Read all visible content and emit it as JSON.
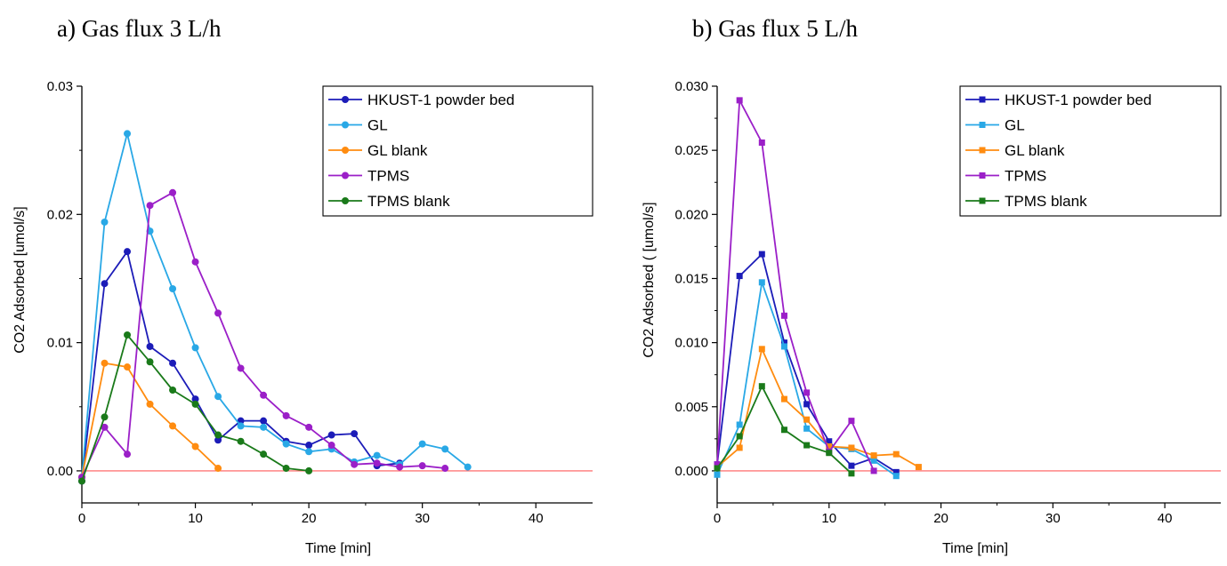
{
  "colors": {
    "hkust": "#1c1cb8",
    "gl": "#29a8e6",
    "gl_blank": "#ff8c10",
    "tpms": "#9b1fc8",
    "tpms_blank": "#1a7a1a",
    "baseline": "#ff5a5a"
  },
  "chart_data": [
    {
      "type": "line",
      "title": "a) Gas flux 3 L/h",
      "xlabel": "Time [min]",
      "ylabel": "CO2 Adsorbed [umol/s]",
      "xlim": [
        0,
        45
      ],
      "ylim": [
        -0.0025,
        0.03
      ],
      "xticks": [
        0,
        10,
        20,
        30,
        40
      ],
      "xtick_labels": [
        "0",
        "10",
        "20",
        "30",
        "40"
      ],
      "yticks": [
        0,
        0.01,
        0.02,
        0.03
      ],
      "ytick_labels": [
        "0.00",
        "0.01",
        "0.02",
        "0.03"
      ],
      "marker": "circle",
      "baseline_y": 0,
      "legend_position": "top-right",
      "series": [
        {
          "name": "HKUST-1 powder bed",
          "color_key": "hkust",
          "x": [
            0,
            2,
            4,
            6,
            8,
            10,
            12,
            14,
            16,
            18,
            20,
            22,
            24,
            26,
            28
          ],
          "y": [
            -0.0008,
            0.0146,
            0.0171,
            0.0097,
            0.0084,
            0.0056,
            0.0024,
            0.0039,
            0.0039,
            0.0023,
            0.002,
            0.0028,
            0.0029,
            0.0004,
            0.0006
          ]
        },
        {
          "name": "GL",
          "color_key": "gl",
          "x": [
            0,
            2,
            4,
            6,
            8,
            10,
            12,
            14,
            16,
            18,
            20,
            22,
            24,
            26,
            28,
            30,
            32,
            34
          ],
          "y": [
            -0.0005,
            0.0194,
            0.0263,
            0.0187,
            0.0142,
            0.0096,
            0.0058,
            0.0035,
            0.0034,
            0.0021,
            0.0015,
            0.0017,
            0.0007,
            0.0012,
            0.0005,
            0.0021,
            0.0017,
            0.0003
          ]
        },
        {
          "name": "GL blank",
          "color_key": "gl_blank",
          "x": [
            0,
            2,
            4,
            6,
            8,
            10,
            12
          ],
          "y": [
            -0.0005,
            0.0084,
            0.0081,
            0.0052,
            0.0035,
            0.0019,
            0.0002
          ]
        },
        {
          "name": "TPMS",
          "color_key": "tpms",
          "x": [
            0,
            2,
            4,
            6,
            8,
            10,
            12,
            14,
            16,
            18,
            20,
            22,
            24,
            26,
            28,
            30,
            32
          ],
          "y": [
            -0.0005,
            0.0034,
            0.0013,
            0.0207,
            0.0217,
            0.0163,
            0.0123,
            0.008,
            0.0059,
            0.0043,
            0.0034,
            0.002,
            0.0005,
            0.0006,
            0.0003,
            0.0004,
            0.0002
          ]
        },
        {
          "name": "TPMS blank",
          "color_key": "tpms_blank",
          "x": [
            0,
            2,
            4,
            6,
            8,
            10,
            12,
            14,
            16,
            18,
            20
          ],
          "y": [
            -0.0008,
            0.0042,
            0.0106,
            0.0085,
            0.0063,
            0.0052,
            0.0028,
            0.0023,
            0.0013,
            0.0002,
            0.0
          ]
        }
      ]
    },
    {
      "type": "line",
      "title": "b) Gas flux 5 L/h",
      "xlabel": "Time [min]",
      "ylabel": "CO2 Adsorbed ( [umol/s]",
      "xlim": [
        0,
        45
      ],
      "ylim": [
        -0.0025,
        0.03
      ],
      "xticks": [
        0,
        10,
        20,
        30,
        40
      ],
      "xtick_labels": [
        "0",
        "10",
        "20",
        "30",
        "40"
      ],
      "yticks": [
        0,
        0.005,
        0.01,
        0.015,
        0.02,
        0.025,
        0.03
      ],
      "ytick_labels": [
        "0.000",
        "0.005",
        "0.010",
        "0.015",
        "0.020",
        "0.025",
        "0.030"
      ],
      "marker": "square",
      "baseline_y": 0,
      "legend_position": "top-right",
      "series": [
        {
          "name": "HKUST-1 powder bed",
          "color_key": "hkust",
          "x": [
            0,
            2,
            4,
            6,
            8,
            10,
            12,
            14,
            16
          ],
          "y": [
            0.0005,
            0.0152,
            0.0169,
            0.01,
            0.0052,
            0.0023,
            0.0004,
            0.001,
            -0.0001
          ]
        },
        {
          "name": "GL",
          "color_key": "gl",
          "x": [
            0,
            2,
            4,
            6,
            8,
            10,
            12,
            14,
            16
          ],
          "y": [
            -0.0003,
            0.0036,
            0.0147,
            0.0097,
            0.0033,
            0.0019,
            0.0017,
            0.0008,
            -0.0004
          ]
        },
        {
          "name": "GL blank",
          "color_key": "gl_blank",
          "x": [
            0,
            2,
            4,
            6,
            8,
            10,
            12,
            14,
            16,
            18
          ],
          "y": [
            0.0003,
            0.0018,
            0.0095,
            0.0056,
            0.004,
            0.0019,
            0.0018,
            0.0012,
            0.0013,
            0.0003
          ]
        },
        {
          "name": "TPMS",
          "color_key": "tpms",
          "x": [
            0,
            2,
            4,
            6,
            8,
            10,
            12,
            14
          ],
          "y": [
            0.0005,
            0.0289,
            0.0256,
            0.0121,
            0.0061,
            0.0015,
            0.0039,
            0.0
          ]
        },
        {
          "name": "TPMS blank",
          "color_key": "tpms_blank",
          "x": [
            0,
            2,
            4,
            6,
            8,
            10,
            12
          ],
          "y": [
            0.0002,
            0.0027,
            0.0066,
            0.0032,
            0.002,
            0.0014,
            -0.0002
          ]
        }
      ]
    }
  ]
}
